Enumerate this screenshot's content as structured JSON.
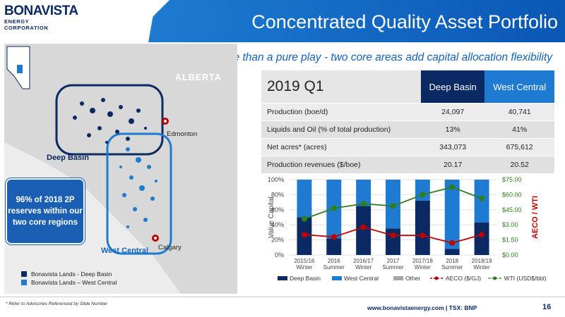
{
  "header": {
    "logo_line1": "BONAVISTA",
    "logo_line2": "ENERGY CORPORATION",
    "title": "Concentrated Quality Asset Portfolio",
    "subtitle": "More than a pure play - two core areas add capital allocation flexibility"
  },
  "map": {
    "province_label": "ALBERTA",
    "city_edmonton": "Edmonton",
    "city_calgary": "Calgary",
    "region_deep_basin": "Deep Basin",
    "region_west_central": "West Central",
    "callout": "96% of 2018 2P reserves within our two core regions",
    "legend": [
      {
        "label": "Bonavista Lands - Deep Basin",
        "color": "#0b2a63"
      },
      {
        "label": "Bonavista Lands – West Central",
        "color": "#1e7bd1"
      }
    ]
  },
  "table": {
    "title": "2019 Q1",
    "col1": "Deep Basin",
    "col2": "West Central",
    "rows": [
      {
        "label": "Production (boe/d)",
        "v1": "24,097",
        "v2": "40,741"
      },
      {
        "label": "Liquids and Oil (% of total production)",
        "v1": "13%",
        "v2": "41%"
      },
      {
        "label": "Net acres* (acres)",
        "v1": "343,073",
        "v2": "675,612"
      },
      {
        "label": "Production revenues ($/boe)",
        "v1": "20.17",
        "v2": "20.52"
      }
    ]
  },
  "chart_data": {
    "type": "bar",
    "stacked": true,
    "categories": [
      "2015/16 Winter",
      "2016 Summer",
      "2016/17 Winter",
      "2017 Summer",
      "2017/18 Winter",
      "2018 Summer",
      "2018/19 Winter"
    ],
    "ylabel": "Value Capital",
    "y2label": "AECO / WTI",
    "ylim": [
      0,
      100
    ],
    "yticks": [
      "0%",
      "20%",
      "40%",
      "60%",
      "80%",
      "100%"
    ],
    "y2ticks": [
      "$0.00",
      "$1.50",
      "$3.00",
      "$45.00",
      "$60.00",
      "$75.00"
    ],
    "series": [
      {
        "name": "Deep Basin",
        "color": "#0b2a63",
        "values": [
          50,
          22,
          65,
          35,
          72,
          8,
          43
        ]
      },
      {
        "name": "West Central",
        "color": "#1e7bd1",
        "values": [
          50,
          78,
          35,
          65,
          28,
          92,
          57
        ]
      },
      {
        "name": "Other",
        "color": "#a6a6a6",
        "values": [
          0,
          0,
          0,
          0,
          0,
          0,
          0
        ]
      }
    ],
    "lines": [
      {
        "name": "AECO ($/GJ)",
        "color": "#c00000",
        "values": [
          27,
          24,
          37,
          26,
          26,
          16,
          27
        ]
      },
      {
        "name": "WTI (USD$/bbl)",
        "color": "#2e7d1e",
        "values": [
          48,
          62,
          68,
          65,
          80,
          90,
          75
        ]
      }
    ],
    "legend_position": "bottom"
  },
  "footer": {
    "note": "* Refer to Advisories Referenced by Slide Number",
    "url": "www.bonavistaenergy.com  |  TSX: BNP",
    "page": "16"
  }
}
